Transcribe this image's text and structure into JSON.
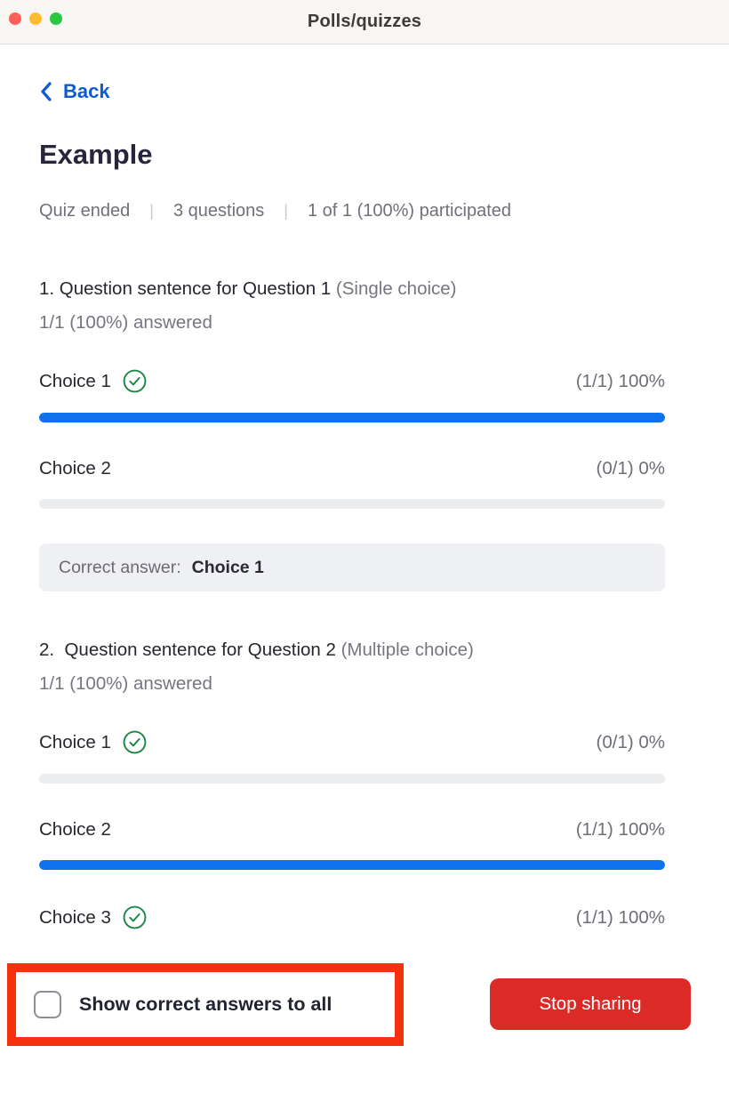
{
  "window": {
    "title": "Polls/quizzes"
  },
  "nav": {
    "back_label": "Back"
  },
  "quiz": {
    "title": "Example",
    "status": {
      "state": "Quiz ended",
      "question_count": "3 questions",
      "participation": "1 of 1 (100%) participated"
    },
    "questions": [
      {
        "heading": "1. Question sentence for Question 1",
        "type_label": "(Single choice)",
        "answered": "1/1 (100%) answered",
        "choices": [
          {
            "label": "Choice 1",
            "correct": true,
            "stat": "(1/1) 100%",
            "percent": 100
          },
          {
            "label": "Choice 2",
            "correct": false,
            "stat": "(0/1) 0%",
            "percent": 0
          }
        ],
        "correct_answer": {
          "prefix": "Correct answer:",
          "value": "Choice 1"
        }
      },
      {
        "heading": "2.  Question sentence for Question 2",
        "type_label": "(Multiple choice)",
        "answered": "1/1 (100%) answered",
        "choices": [
          {
            "label": "Choice 1",
            "correct": true,
            "stat": "(0/1) 0%",
            "percent": 0
          },
          {
            "label": "Choice 2",
            "correct": false,
            "stat": "(1/1) 100%",
            "percent": 100
          },
          {
            "label": "Choice 3",
            "correct": true,
            "stat": "(1/1) 100%",
            "percent": null
          }
        ]
      }
    ]
  },
  "footer": {
    "checkbox_label": "Show correct answers to all",
    "checkbox_checked": false,
    "stop_button_label": "Stop sharing"
  },
  "colors": {
    "accent_blue": "#0e72ed",
    "link_blue": "#0e5bd3",
    "success_green": "#1c8745",
    "danger_red": "#dc2b26",
    "annotation_red": "#f4320e",
    "bar_track": "#ecedef",
    "muted_text": "#71707a"
  }
}
